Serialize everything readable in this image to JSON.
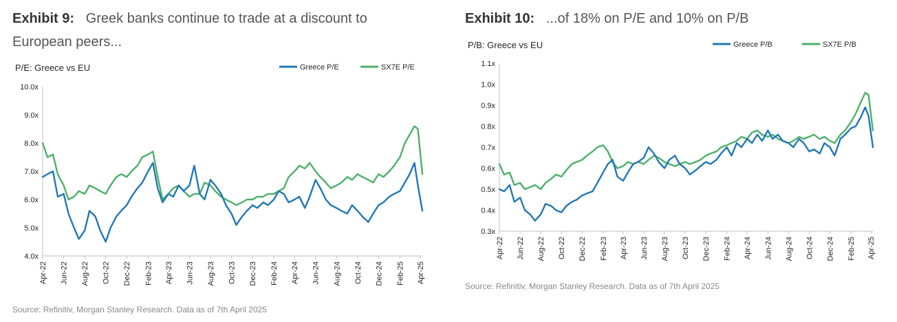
{
  "exhibit9": {
    "label": "Exhibit 9:",
    "title": "Greek banks continue to trade at a discount to European peers...",
    "source": "Source: Refinitiv, Morgan Stanley Research. Data as of 7th April 2025"
  },
  "exhibit10": {
    "label": "Exhibit 10:",
    "title": "...of 18% on P/E and 10% on P/B",
    "source": "Source: Refinitiv, Morgan Stanley Research. Data as of 7th April 2025"
  },
  "colors": {
    "greece": "#1f77b4",
    "sx7e": "#4caf6a",
    "axis": "#bfbfbf"
  },
  "chart_data": [
    {
      "type": "line",
      "title": "P/E: Greece vs EU",
      "xlabel": "",
      "ylabel": "",
      "x_ticks": [
        "Apr-22",
        "Jun-22",
        "Aug-22",
        "Oct-22",
        "Dec-22",
        "Feb-23",
        "Apr-23",
        "Jun-23",
        "Aug-23",
        "Oct-23",
        "Dec-23",
        "Feb-24",
        "Apr-24",
        "Jun-24",
        "Aug-24",
        "Oct-24",
        "Dec-24",
        "Feb-25",
        "Apr-25"
      ],
      "y_ticks": [
        "4.0x",
        "5.0x",
        "6.0x",
        "7.0x",
        "8.0x",
        "9.0x",
        "10.0x"
      ],
      "ylim": [
        4.0,
        10.0
      ],
      "xlim": [
        "2022-04-01",
        "2025-04-07"
      ],
      "grid": false,
      "legend": "top-right",
      "series": [
        {
          "name": "Greece P/E",
          "color": "greece",
          "x": [
            "2022-04-01",
            "2022-04-15",
            "2022-05-01",
            "2022-05-15",
            "2022-06-01",
            "2022-06-15",
            "2022-07-01",
            "2022-07-15",
            "2022-08-01",
            "2022-08-15",
            "2022-09-01",
            "2022-09-15",
            "2022-10-01",
            "2022-10-15",
            "2022-11-01",
            "2022-11-15",
            "2022-12-01",
            "2022-12-15",
            "2023-01-01",
            "2023-01-15",
            "2023-02-01",
            "2023-02-15",
            "2023-03-01",
            "2023-03-15",
            "2023-04-01",
            "2023-04-15",
            "2023-05-01",
            "2023-05-15",
            "2023-06-01",
            "2023-06-15",
            "2023-07-01",
            "2023-07-15",
            "2023-08-01",
            "2023-08-15",
            "2023-09-01",
            "2023-09-15",
            "2023-10-01",
            "2023-10-15",
            "2023-11-01",
            "2023-11-15",
            "2023-12-01",
            "2023-12-15",
            "2024-01-01",
            "2024-01-15",
            "2024-02-01",
            "2024-02-15",
            "2024-03-01",
            "2024-03-15",
            "2024-04-01",
            "2024-04-15",
            "2024-05-01",
            "2024-05-15",
            "2024-06-01",
            "2024-06-15",
            "2024-07-01",
            "2024-07-15",
            "2024-08-01",
            "2024-08-15",
            "2024-09-01",
            "2024-09-15",
            "2024-10-01",
            "2024-10-15",
            "2024-11-01",
            "2024-11-15",
            "2024-12-01",
            "2024-12-15",
            "2025-01-01",
            "2025-01-15",
            "2025-02-01",
            "2025-02-15",
            "2025-03-01",
            "2025-03-15",
            "2025-03-25",
            "2025-04-07"
          ],
          "y": [
            6.8,
            6.9,
            7.0,
            6.1,
            6.2,
            5.5,
            5.0,
            4.6,
            4.9,
            5.6,
            5.4,
            4.9,
            4.5,
            5.0,
            5.4,
            5.6,
            5.8,
            6.1,
            6.4,
            6.6,
            7.0,
            7.3,
            6.4,
            5.9,
            6.2,
            6.1,
            6.5,
            6.3,
            6.5,
            7.2,
            6.2,
            6.0,
            6.7,
            6.5,
            6.2,
            5.8,
            5.5,
            5.1,
            5.4,
            5.6,
            5.8,
            5.7,
            5.9,
            5.8,
            6.0,
            6.3,
            6.2,
            5.9,
            6.0,
            6.1,
            5.7,
            6.1,
            6.7,
            6.4,
            6.0,
            5.8,
            5.7,
            5.6,
            5.5,
            5.8,
            5.6,
            5.4,
            5.2,
            5.5,
            5.8,
            5.9,
            6.1,
            6.2,
            6.3,
            6.6,
            6.9,
            7.3,
            6.5,
            5.6
          ]
        },
        {
          "name": "SX7E P/E",
          "color": "sx7e",
          "x": [
            "2022-04-01",
            "2022-04-15",
            "2022-05-01",
            "2022-05-15",
            "2022-06-01",
            "2022-06-15",
            "2022-07-01",
            "2022-07-15",
            "2022-08-01",
            "2022-08-15",
            "2022-09-01",
            "2022-09-15",
            "2022-10-01",
            "2022-10-15",
            "2022-11-01",
            "2022-11-15",
            "2022-12-01",
            "2022-12-15",
            "2023-01-01",
            "2023-01-15",
            "2023-02-01",
            "2023-02-15",
            "2023-03-01",
            "2023-03-15",
            "2023-04-01",
            "2023-04-15",
            "2023-05-01",
            "2023-05-15",
            "2023-06-01",
            "2023-06-15",
            "2023-07-01",
            "2023-07-15",
            "2023-08-01",
            "2023-08-15",
            "2023-09-01",
            "2023-09-15",
            "2023-10-01",
            "2023-10-15",
            "2023-11-01",
            "2023-11-15",
            "2023-12-01",
            "2023-12-15",
            "2024-01-01",
            "2024-01-15",
            "2024-02-01",
            "2024-02-15",
            "2024-03-01",
            "2024-03-15",
            "2024-04-01",
            "2024-04-15",
            "2024-05-01",
            "2024-05-15",
            "2024-06-01",
            "2024-06-15",
            "2024-07-01",
            "2024-07-15",
            "2024-08-01",
            "2024-08-15",
            "2024-09-01",
            "2024-09-15",
            "2024-10-01",
            "2024-10-15",
            "2024-11-01",
            "2024-11-15",
            "2024-12-01",
            "2024-12-15",
            "2025-01-01",
            "2025-01-15",
            "2025-02-01",
            "2025-02-15",
            "2025-03-01",
            "2025-03-15",
            "2025-03-25",
            "2025-04-07"
          ],
          "y": [
            8.0,
            7.5,
            7.6,
            6.9,
            6.5,
            6.0,
            6.1,
            6.3,
            6.2,
            6.5,
            6.4,
            6.3,
            6.2,
            6.5,
            6.8,
            6.9,
            6.8,
            7.0,
            7.2,
            7.5,
            7.6,
            7.7,
            6.8,
            6.0,
            6.2,
            6.4,
            6.5,
            6.3,
            6.1,
            6.2,
            6.2,
            6.6,
            6.5,
            6.3,
            6.1,
            6.0,
            5.9,
            5.8,
            5.9,
            6.0,
            6.0,
            6.1,
            6.1,
            6.2,
            6.2,
            6.3,
            6.4,
            6.8,
            7.0,
            7.2,
            7.1,
            7.3,
            7.0,
            6.8,
            6.6,
            6.4,
            6.5,
            6.6,
            6.8,
            6.7,
            6.9,
            6.8,
            6.7,
            6.6,
            6.9,
            6.8,
            7.0,
            7.2,
            7.5,
            8.0,
            8.3,
            8.6,
            8.5,
            6.9
          ]
        }
      ]
    },
    {
      "type": "line",
      "title": "P/B: Greece vs EU",
      "xlabel": "",
      "ylabel": "",
      "x_ticks": [
        "Apr-22",
        "Jun-22",
        "Aug-22",
        "Oct-22",
        "Dec-22",
        "Feb-23",
        "Apr-23",
        "Jun-23",
        "Aug-23",
        "Oct-23",
        "Dec-23",
        "Feb-24",
        "Apr-24",
        "Jun-24",
        "Aug-24",
        "Oct-24",
        "Dec-24",
        "Feb-25",
        "Apr-25"
      ],
      "y_ticks": [
        "0.3x",
        "0.4x",
        "0.5x",
        "0.6x",
        "0.7x",
        "0.8x",
        "0.9x",
        "1.0x",
        "1.1x"
      ],
      "ylim": [
        0.3,
        1.1
      ],
      "xlim": [
        "2022-04-01",
        "2025-04-07"
      ],
      "grid": false,
      "legend": "top-right",
      "series": [
        {
          "name": "Greece P/B",
          "color": "greece",
          "x": [
            "2022-04-01",
            "2022-04-15",
            "2022-05-01",
            "2022-05-15",
            "2022-06-01",
            "2022-06-15",
            "2022-07-01",
            "2022-07-15",
            "2022-08-01",
            "2022-08-15",
            "2022-09-01",
            "2022-09-15",
            "2022-10-01",
            "2022-10-15",
            "2022-11-01",
            "2022-11-15",
            "2022-12-01",
            "2022-12-15",
            "2023-01-01",
            "2023-01-15",
            "2023-02-01",
            "2023-02-15",
            "2023-03-01",
            "2023-03-15",
            "2023-04-01",
            "2023-04-15",
            "2023-05-01",
            "2023-05-15",
            "2023-06-01",
            "2023-06-15",
            "2023-07-01",
            "2023-07-15",
            "2023-08-01",
            "2023-08-15",
            "2023-09-01",
            "2023-09-15",
            "2023-10-01",
            "2023-10-15",
            "2023-11-01",
            "2023-11-15",
            "2023-12-01",
            "2023-12-15",
            "2024-01-01",
            "2024-01-15",
            "2024-02-01",
            "2024-02-15",
            "2024-03-01",
            "2024-03-15",
            "2024-04-01",
            "2024-04-15",
            "2024-05-01",
            "2024-05-15",
            "2024-06-01",
            "2024-06-15",
            "2024-07-01",
            "2024-07-15",
            "2024-08-01",
            "2024-08-15",
            "2024-09-01",
            "2024-09-15",
            "2024-10-01",
            "2024-10-15",
            "2024-11-01",
            "2024-11-15",
            "2024-12-01",
            "2024-12-15",
            "2025-01-01",
            "2025-01-15",
            "2025-02-01",
            "2025-02-15",
            "2025-03-01",
            "2025-03-15",
            "2025-03-25",
            "2025-04-07"
          ],
          "y": [
            0.5,
            0.49,
            0.52,
            0.44,
            0.46,
            0.4,
            0.38,
            0.35,
            0.38,
            0.43,
            0.42,
            0.4,
            0.39,
            0.42,
            0.44,
            0.45,
            0.47,
            0.48,
            0.49,
            0.53,
            0.58,
            0.62,
            0.64,
            0.56,
            0.54,
            0.58,
            0.62,
            0.63,
            0.65,
            0.7,
            0.67,
            0.63,
            0.6,
            0.64,
            0.66,
            0.62,
            0.6,
            0.57,
            0.59,
            0.61,
            0.63,
            0.62,
            0.64,
            0.67,
            0.7,
            0.66,
            0.72,
            0.7,
            0.74,
            0.72,
            0.76,
            0.73,
            0.78,
            0.74,
            0.76,
            0.73,
            0.72,
            0.7,
            0.74,
            0.72,
            0.68,
            0.69,
            0.67,
            0.72,
            0.7,
            0.66,
            0.74,
            0.76,
            0.79,
            0.8,
            0.84,
            0.89,
            0.85,
            0.7
          ]
        },
        {
          "name": "SX7E P/B",
          "color": "sx7e",
          "x": [
            "2022-04-01",
            "2022-04-15",
            "2022-05-01",
            "2022-05-15",
            "2022-06-01",
            "2022-06-15",
            "2022-07-01",
            "2022-07-15",
            "2022-08-01",
            "2022-08-15",
            "2022-09-01",
            "2022-09-15",
            "2022-10-01",
            "2022-10-15",
            "2022-11-01",
            "2022-11-15",
            "2022-12-01",
            "2022-12-15",
            "2023-01-01",
            "2023-01-15",
            "2023-02-01",
            "2023-02-15",
            "2023-03-01",
            "2023-03-15",
            "2023-04-01",
            "2023-04-15",
            "2023-05-01",
            "2023-05-15",
            "2023-06-01",
            "2023-06-15",
            "2023-07-01",
            "2023-07-15",
            "2023-08-01",
            "2023-08-15",
            "2023-09-01",
            "2023-09-15",
            "2023-10-01",
            "2023-10-15",
            "2023-11-01",
            "2023-11-15",
            "2023-12-01",
            "2023-12-15",
            "2024-01-01",
            "2024-01-15",
            "2024-02-01",
            "2024-02-15",
            "2024-03-01",
            "2024-03-15",
            "2024-04-01",
            "2024-04-15",
            "2024-05-01",
            "2024-05-15",
            "2024-06-01",
            "2024-06-15",
            "2024-07-01",
            "2024-07-15",
            "2024-08-01",
            "2024-08-15",
            "2024-09-01",
            "2024-09-15",
            "2024-10-01",
            "2024-10-15",
            "2024-11-01",
            "2024-11-15",
            "2024-12-01",
            "2024-12-15",
            "2025-01-01",
            "2025-01-15",
            "2025-02-01",
            "2025-02-15",
            "2025-03-01",
            "2025-03-15",
            "2025-03-25",
            "2025-04-07"
          ],
          "y": [
            0.62,
            0.57,
            0.58,
            0.52,
            0.53,
            0.5,
            0.51,
            0.52,
            0.5,
            0.53,
            0.55,
            0.57,
            0.56,
            0.59,
            0.62,
            0.63,
            0.64,
            0.66,
            0.68,
            0.7,
            0.71,
            0.68,
            0.63,
            0.6,
            0.61,
            0.63,
            0.62,
            0.63,
            0.62,
            0.64,
            0.66,
            0.65,
            0.63,
            0.62,
            0.61,
            0.62,
            0.63,
            0.62,
            0.63,
            0.64,
            0.66,
            0.67,
            0.68,
            0.7,
            0.71,
            0.72,
            0.73,
            0.75,
            0.74,
            0.77,
            0.78,
            0.76,
            0.75,
            0.76,
            0.74,
            0.73,
            0.72,
            0.73,
            0.75,
            0.74,
            0.75,
            0.76,
            0.74,
            0.75,
            0.73,
            0.72,
            0.76,
            0.78,
            0.82,
            0.86,
            0.91,
            0.96,
            0.95,
            0.78
          ]
        }
      ]
    }
  ]
}
